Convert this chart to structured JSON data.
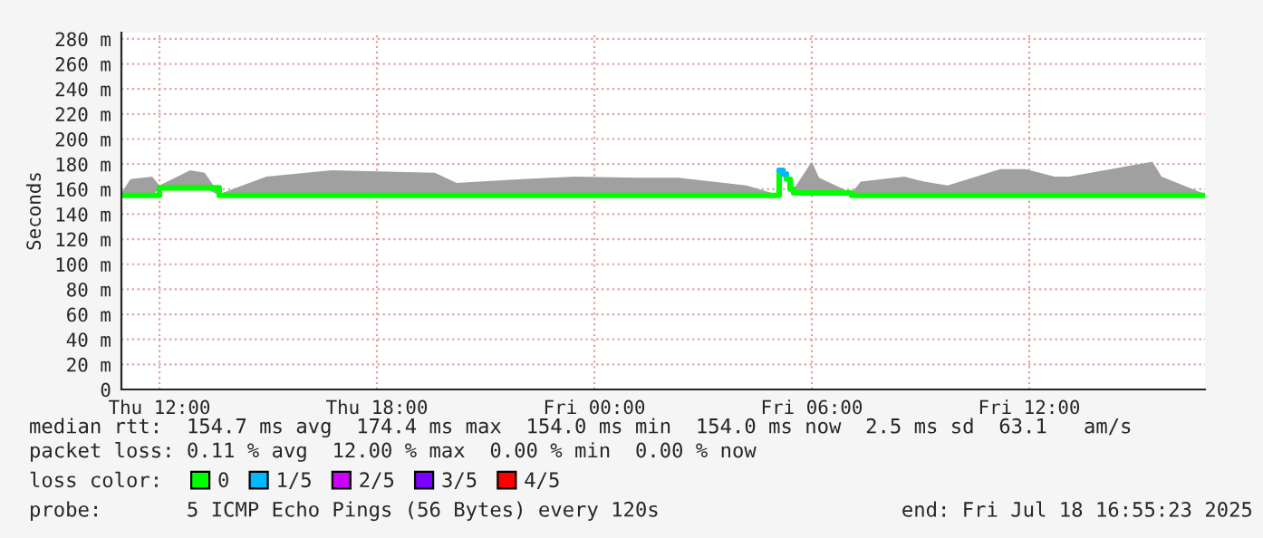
{
  "chart_data": {
    "type": "step",
    "ylabel": "Seconds",
    "legend_title": "loss color:",
    "x": [
      "2025-07-17T10:57",
      "2025-07-17T11:12",
      "2025-07-17T11:48",
      "2025-07-17T12:00",
      "2025-07-17T12:51",
      "2025-07-17T13:15",
      "2025-07-17T13:39",
      "2025-07-17T14:57",
      "2025-07-17T16:45",
      "2025-07-17T19:36",
      "2025-07-17T20:12",
      "2025-07-17T22:00",
      "2025-07-17T23:27",
      "2025-07-18T01:12",
      "2025-07-18T02:21",
      "2025-07-18T04:12",
      "2025-07-18T05:00",
      "2025-07-18T05:06",
      "2025-07-18T05:12",
      "2025-07-18T05:18",
      "2025-07-18T05:24",
      "2025-07-18T05:30",
      "2025-07-18T06:00",
      "2025-07-18T06:12",
      "2025-07-18T07:06",
      "2025-07-18T07:21",
      "2025-07-18T08:33",
      "2025-07-18T09:06",
      "2025-07-18T09:45",
      "2025-07-18T11:12",
      "2025-07-18T11:54",
      "2025-07-18T12:42",
      "2025-07-18T13:06",
      "2025-07-18T15:24",
      "2025-07-18T15:39",
      "2025-07-18T16:51"
    ],
    "series": [
      {
        "name": "0",
        "color": "#00ff00",
        "values": [
          155,
          155,
          155,
          161,
          161,
          161,
          155,
          155,
          155,
          155,
          155,
          155,
          155,
          155,
          155,
          155,
          155,
          175,
          172,
          168,
          160,
          157,
          157,
          157,
          155,
          155,
          155,
          155,
          155,
          155,
          155,
          155,
          155,
          155,
          155,
          155
        ],
        "lower": [
          155,
          155,
          155,
          161,
          161,
          161,
          155,
          155,
          155,
          155,
          155,
          155,
          155,
          155,
          155,
          155,
          155,
          175,
          172,
          168,
          160,
          157,
          157,
          157,
          155,
          155,
          155,
          155,
          155,
          155,
          155,
          155,
          155,
          155,
          155,
          155
        ],
        "upper": [
          157,
          168,
          170,
          163,
          175,
          173,
          156,
          170,
          175,
          173,
          165,
          168,
          170,
          169,
          169,
          163,
          156,
          177,
          174,
          170,
          165,
          160,
          182,
          169,
          157,
          166,
          170,
          166,
          163,
          176,
          176,
          170,
          170,
          182,
          170,
          156
        ]
      },
      {
        "name": "1/5",
        "color": "#00b8ff",
        "values": [
          null,
          null,
          null,
          null,
          null,
          null,
          null,
          null,
          null,
          null,
          null,
          null,
          null,
          null,
          null,
          null,
          null,
          175,
          172,
          null,
          null,
          null,
          null,
          null,
          null,
          null,
          null,
          null,
          null,
          null,
          null,
          null,
          null,
          null,
          null,
          null
        ]
      },
      {
        "name": "2/5",
        "color": "#cc00ff",
        "values": [
          null,
          null,
          null,
          null,
          null,
          null,
          null,
          null,
          null,
          null,
          null,
          null,
          null,
          null,
          null,
          null,
          null,
          null,
          null,
          null,
          null,
          null,
          null,
          null,
          null,
          null,
          null,
          null,
          null,
          null,
          null,
          null,
          null,
          null,
          null,
          null
        ]
      },
      {
        "name": "3/5",
        "color": "#7b00ff",
        "values": [
          null,
          null,
          null,
          null,
          null,
          null,
          null,
          null,
          null,
          null,
          null,
          null,
          null,
          null,
          null,
          null,
          null,
          null,
          null,
          null,
          null,
          null,
          null,
          null,
          null,
          null,
          null,
          null,
          null,
          null,
          null,
          null,
          null,
          null,
          null,
          null
        ]
      },
      {
        "name": "4/5",
        "color": "#ff0000",
        "values": [
          null,
          null,
          null,
          null,
          null,
          null,
          null,
          null,
          null,
          null,
          null,
          null,
          null,
          null,
          null,
          null,
          null,
          null,
          null,
          null,
          null,
          null,
          null,
          null,
          null,
          null,
          null,
          null,
          null,
          null,
          null,
          null,
          null,
          null,
          null,
          null
        ]
      }
    ],
    "xlim": [
      "2025-07-17T10:57",
      "2025-07-18T16:51"
    ],
    "xticks": [
      {
        "value": "2025-07-17T12:00",
        "label": "Thu 12:00"
      },
      {
        "value": "2025-07-17T18:00",
        "label": "Thu 18:00"
      },
      {
        "value": "2025-07-18T00:00",
        "label": "Fri 00:00"
      },
      {
        "value": "2025-07-18T06:00",
        "label": "Fri 06:00"
      },
      {
        "value": "2025-07-18T12:00",
        "label": "Fri 12:00"
      }
    ],
    "ylim": [
      0,
      285
    ],
    "yticks": [
      {
        "value": 0,
        "label": "0"
      },
      {
        "value": 20,
        "label": "20 m"
      },
      {
        "value": 40,
        "label": "40 m"
      },
      {
        "value": 60,
        "label": "60 m"
      },
      {
        "value": 80,
        "label": "80 m"
      },
      {
        "value": 100,
        "label": "100 m"
      },
      {
        "value": 120,
        "label": "120 m"
      },
      {
        "value": 140,
        "label": "140 m"
      },
      {
        "value": 160,
        "label": "160 m"
      },
      {
        "value": 180,
        "label": "180 m"
      },
      {
        "value": 200,
        "label": "200 m"
      },
      {
        "value": 220,
        "label": "220 m"
      },
      {
        "value": 240,
        "label": "240 m"
      },
      {
        "value": 260,
        "label": "260 m"
      },
      {
        "value": 280,
        "label": "280 m"
      }
    ],
    "grid": true,
    "legend": "bottom",
    "annotations": [
      "median rtt:  154.7 ms avg  174.4 ms max  154.0 ms min  154.0 ms now  2.5 ms sd  63.1   am/s",
      "packet loss: 0.11 % avg  12.00 % max  0.00 % min  0.00 % now",
      "probe:       5 ICMP Echo Pings (56 Bytes) every 120s",
      "end: Fri Jul 18 16:55:23 2025"
    ]
  }
}
